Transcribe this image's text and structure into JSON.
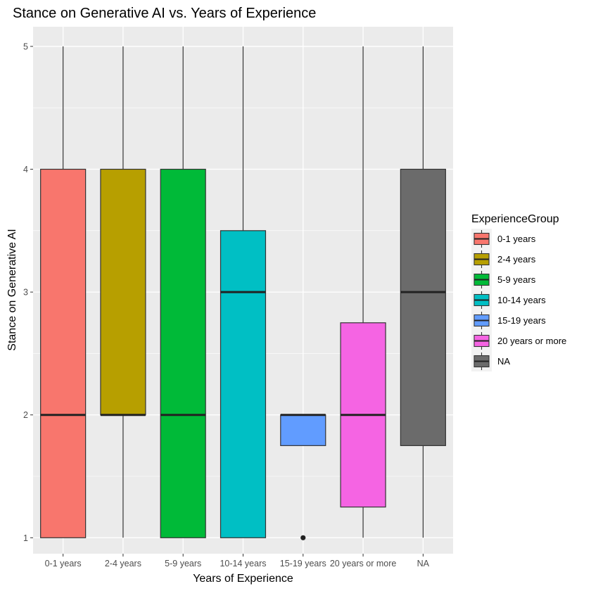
{
  "chart_data": {
    "type": "box",
    "title": "Stance on Generative AI vs. Years of Experience",
    "xlabel": "Years of Experience",
    "ylabel": "Stance on Generative AI",
    "ylim": [
      0.87,
      5.16
    ],
    "yticks": [
      1,
      2,
      3,
      4,
      5
    ],
    "grid": true,
    "legend": {
      "title": "ExperienceGroup",
      "position": "right"
    },
    "categories": [
      "0-1 years",
      "2-4 years",
      "5-9 years",
      "10-14 years",
      "15-19 years",
      "20 years or more",
      "NA"
    ],
    "boxes": [
      {
        "name": "0-1 years",
        "color": "#F8766D",
        "min": 1,
        "q1": 1,
        "median": 2,
        "q3": 4,
        "max": 5,
        "outliers": []
      },
      {
        "name": "2-4 years",
        "color": "#B79F00",
        "min": 1,
        "q1": 2,
        "median": 2,
        "q3": 4,
        "max": 5,
        "outliers": []
      },
      {
        "name": "5-9 years",
        "color": "#00BA38",
        "min": 1,
        "q1": 1,
        "median": 2,
        "q3": 4,
        "max": 5,
        "outliers": []
      },
      {
        "name": "10-14 years",
        "color": "#00BFC4",
        "min": 1,
        "q1": 1,
        "median": 3,
        "q3": 3.5,
        "max": 5,
        "outliers": []
      },
      {
        "name": "15-19 years",
        "color": "#619CFF",
        "min": 1.75,
        "q1": 1.75,
        "median": 2,
        "q3": 2,
        "max": 2,
        "outliers": [
          1
        ]
      },
      {
        "name": "20 years or more",
        "color": "#F564E3",
        "min": 1,
        "q1": 1.25,
        "median": 2,
        "q3": 2.75,
        "max": 5,
        "outliers": []
      },
      {
        "name": "NA",
        "color": "#6B6B6B",
        "min": 1,
        "q1": 1.75,
        "median": 3,
        "q3": 4,
        "max": 5,
        "outliers": []
      }
    ]
  }
}
